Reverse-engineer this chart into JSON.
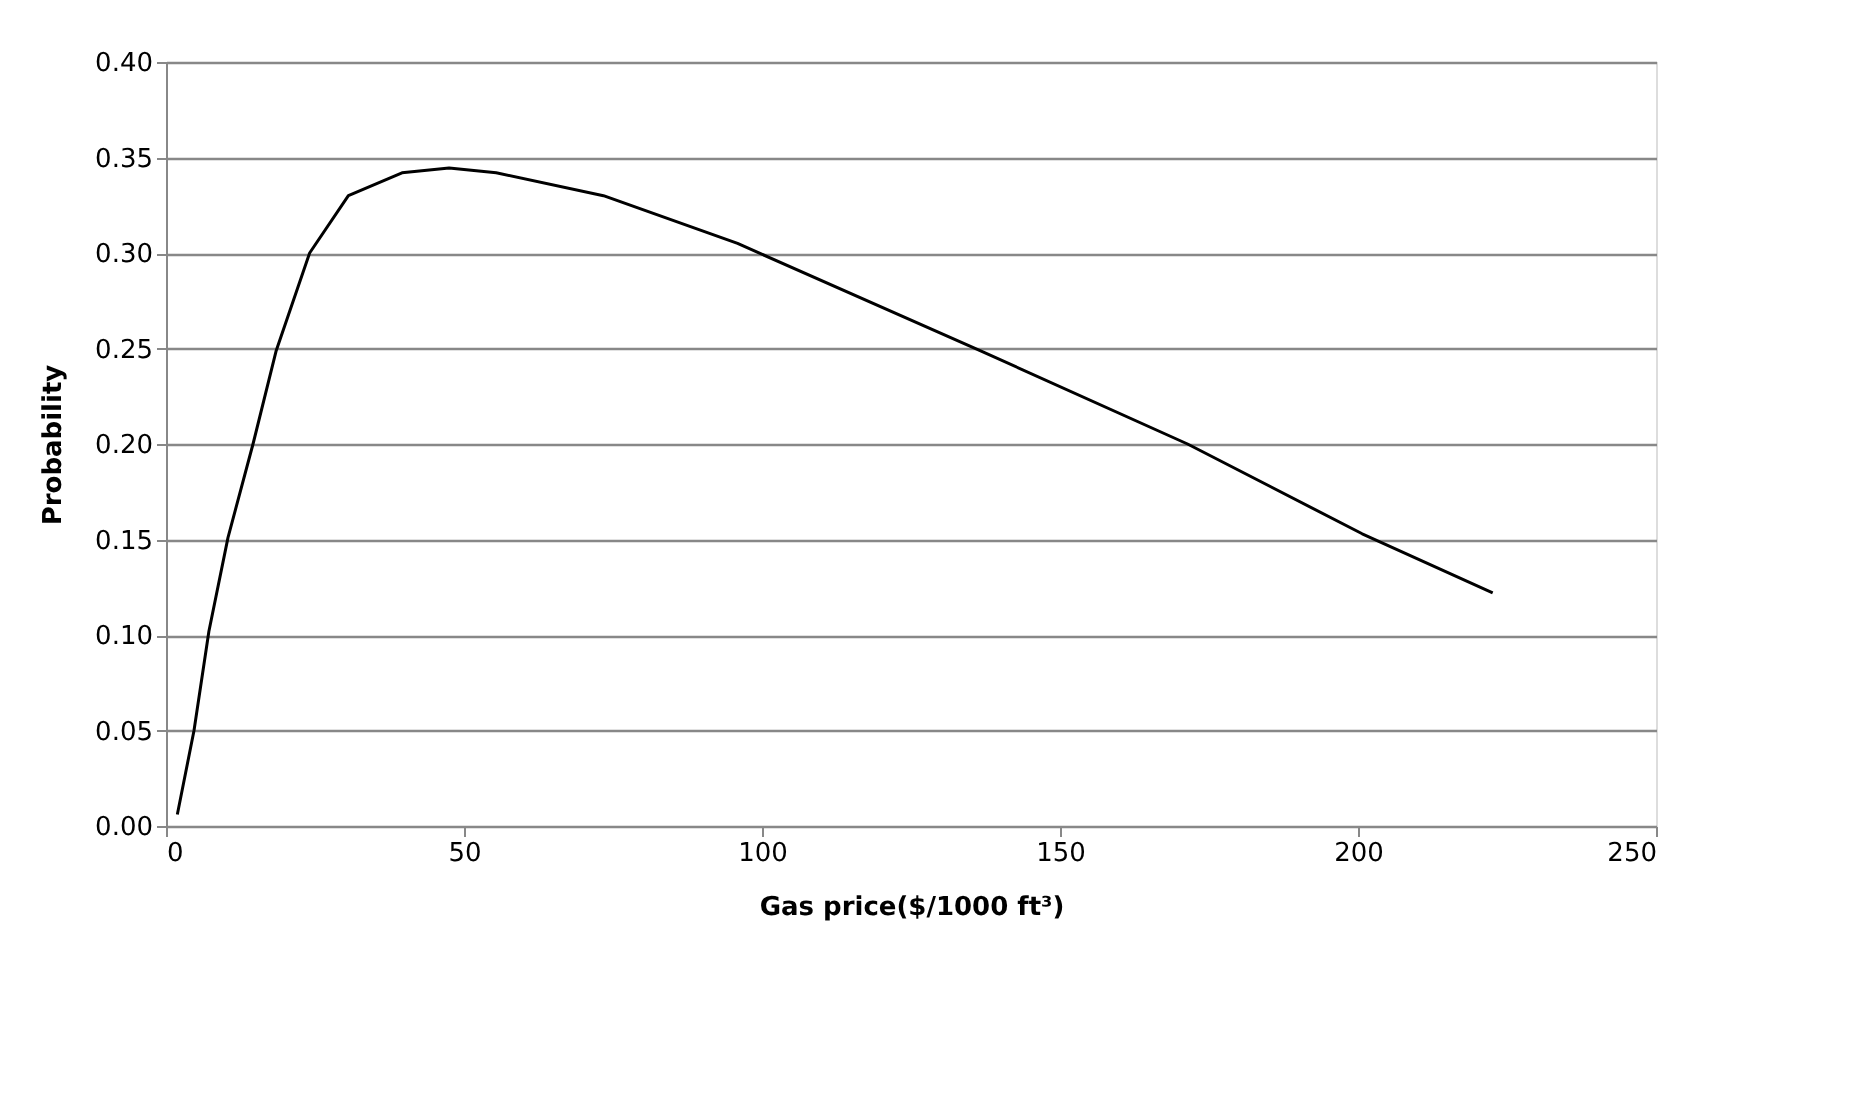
{
  "chart_data": {
    "type": "line",
    "xlabel": "Gas price($/1000 ft³)",
    "ylabel": "Probability",
    "x": [
      1.9,
      4.7,
      7.2,
      10.4,
      14.6,
      18.5,
      24.1,
      30.6,
      39.6,
      47.5,
      55.4,
      73.4,
      95.9,
      136.5,
      171.4,
      200.7,
      222.6
    ],
    "series": [
      {
        "color": "#000000",
        "values": [
          0.006,
          0.05,
          0.102,
          0.151,
          0.2,
          0.249,
          0.3,
          0.33,
          0.342,
          0.3445,
          0.342,
          0.33,
          0.305,
          0.249,
          0.2,
          0.153,
          0.122
        ]
      }
    ],
    "xlim": [
      0,
      250
    ],
    "xticks": [
      0,
      50,
      100,
      150,
      200,
      250
    ],
    "ylim": [
      0,
      0.4
    ],
    "yticks": [
      {
        "value": 0,
        "label": "0.00"
      },
      {
        "value": 0.05,
        "label": "0.05"
      },
      {
        "value": 0.1,
        "label": "0.10"
      },
      {
        "value": 0.15,
        "label": "0.15"
      },
      {
        "value": 0.2,
        "label": "0.20"
      },
      {
        "value": 0.25,
        "label": "0.25"
      },
      {
        "value": 0.3,
        "label": "0.30"
      },
      {
        "value": 0.35,
        "label": "0.35"
      },
      {
        "value": 0.4,
        "label": "0.40"
      }
    ],
    "grid": "y",
    "legend": false,
    "marker": "none",
    "line_style": "solid"
  }
}
